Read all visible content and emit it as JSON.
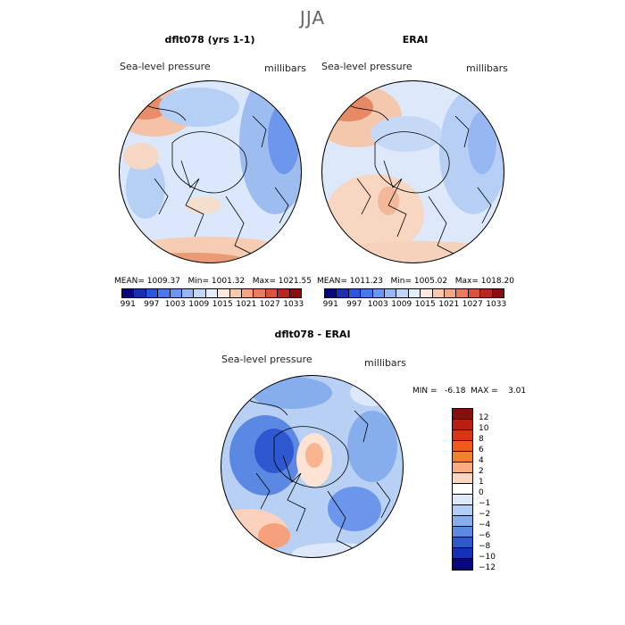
{
  "chart_data": [
    {
      "type": "heatmap",
      "title": "dflt078 (yrs 1-1)",
      "suptitle": "JJA",
      "variable": "Sea-level pressure",
      "units": "millibars",
      "stats": {
        "mean": "1009.37",
        "min": "1001.32",
        "max": "1021.55"
      },
      "colorbar_ticks": [
        "991",
        "997",
        "1003",
        "1009",
        "1015",
        "1021",
        "1027",
        "1033"
      ]
    },
    {
      "type": "heatmap",
      "title": "ERAI",
      "variable": "Sea-level pressure",
      "units": "millibars",
      "stats": {
        "mean": "1011.23",
        "min": "1005.02",
        "max": "1018.20"
      },
      "colorbar_ticks": [
        "991",
        "997",
        "1003",
        "1009",
        "1015",
        "1021",
        "1027",
        "1033"
      ]
    },
    {
      "type": "heatmap",
      "title": "dflt078 - ERAI",
      "variable": "Sea-level pressure",
      "units": "millibars",
      "stats": {
        "min": "-6.18",
        "max": "3.01"
      },
      "colorbar_ticks": [
        "12",
        "10",
        "8",
        "6",
        "4",
        "2",
        "1",
        "0",
        "−1",
        "−2",
        "−4",
        "−6",
        "−8",
        "−10",
        "−12"
      ]
    }
  ],
  "labels": {
    "season": "JJA",
    "p1_title": "dflt078 (yrs 1-1)",
    "p2_title": "ERAI",
    "p3_title": "dflt078 - ERAI",
    "variable": "Sea-level pressure",
    "units": "millibars",
    "p1_stats": "MEAN= 1009.37   Min= 1001.32   Max= 1021.55",
    "p2_stats": "MEAN= 1011.23   Min= 1005.02   Max= 1018.20",
    "p3_stats": "MIN =   -6.18  MAX =    3.01"
  },
  "colors": {
    "abs_scale": [
      "#08087a",
      "#1a2fb0",
      "#2c56d8",
      "#4a78e6",
      "#6b96ec",
      "#97b7f2",
      "#c2d6f7",
      "#e3eefc",
      "#fce8dc",
      "#f8c9ae",
      "#f1a784",
      "#e77d5c",
      "#d8533a",
      "#b8271f",
      "#8a0e0e"
    ],
    "diff_scale": [
      "#8a0e0e",
      "#b81e12",
      "#d93514",
      "#f05a1a",
      "#f7802f",
      "#fbad80",
      "#fdd6c0",
      "#ffffff",
      "#dde8fa",
      "#b3cdf4",
      "#86aeec",
      "#5c8ae2",
      "#2f58d0",
      "#1531b8",
      "#08087a"
    ]
  }
}
